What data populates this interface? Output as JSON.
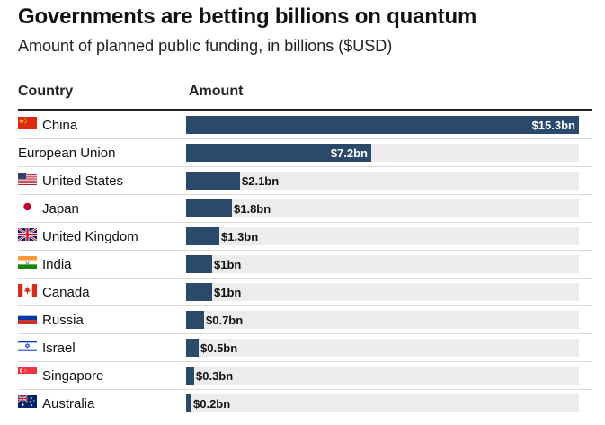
{
  "title": "Governments are betting billions on quantum",
  "subtitle": "Amount of planned public funding, in billions ($USD)",
  "headers": {
    "country": "Country",
    "amount": "Amount"
  },
  "colors": {
    "bar": "#2b4a6b",
    "track": "#ececec"
  },
  "chart_data": {
    "type": "bar",
    "orientation": "horizontal",
    "categories": [
      "China",
      "European Union",
      "United States",
      "Japan",
      "United Kingdom",
      "India",
      "Canada",
      "Russia",
      "Israel",
      "Singapore",
      "Australia"
    ],
    "values": [
      15.3,
      7.2,
      2.1,
      1.8,
      1.3,
      1,
      1,
      0.7,
      0.5,
      0.3,
      0.2
    ],
    "labels": [
      "$15.3bn",
      "$7.2bn",
      "$2.1bn",
      "$1.8bn",
      "$1.3bn",
      "$1bn",
      "$1bn",
      "$0.7bn",
      "$0.5bn",
      "$0.3bn",
      "$0.2bn"
    ],
    "flags": [
      "flag-china-icon",
      "",
      "flag-united-states-icon",
      "flag-japan-icon",
      "flag-united-kingdom-icon",
      "flag-india-icon",
      "flag-canada-icon",
      "flag-russia-icon",
      "flag-israel-icon",
      "flag-singapore-icon",
      "flag-australia-icon"
    ],
    "xlim": [
      0,
      15.3
    ]
  }
}
